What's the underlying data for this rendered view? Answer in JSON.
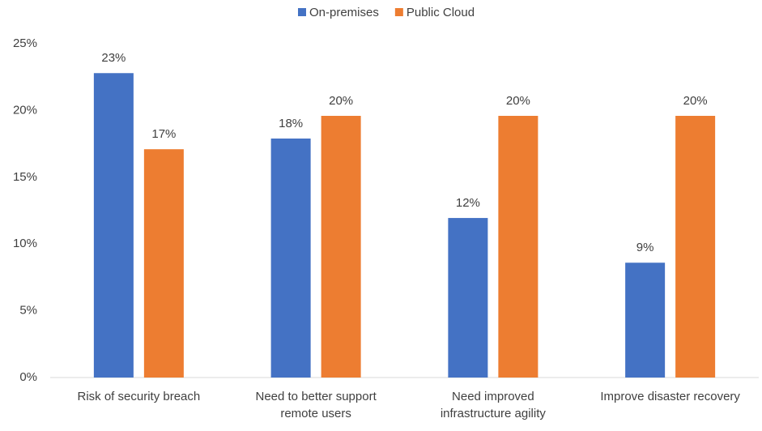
{
  "chart_data": {
    "type": "bar",
    "categories": [
      "Risk of security breach",
      "Need to better support remote users",
      "Need improved infrastructure agility",
      "Improve disaster recovery"
    ],
    "series": [
      {
        "name": "On-premises",
        "color": "#4472c4",
        "values": [
          22.8,
          17.9,
          11.95,
          8.6
        ],
        "value_labels": [
          "23%",
          "18%",
          "12%",
          "9%"
        ]
      },
      {
        "name": "Public Cloud",
        "color": "#ed7d31",
        "values": [
          17.1,
          19.6,
          19.6,
          19.6
        ],
        "value_labels": [
          "17%",
          "20%",
          "20%",
          "20%"
        ]
      }
    ],
    "ylim": [
      0,
      25
    ],
    "yticks": [
      {
        "value": 0,
        "label": "0%"
      },
      {
        "value": 5,
        "label": "5%"
      },
      {
        "value": 10,
        "label": "10%"
      },
      {
        "value": 15,
        "label": "15%"
      },
      {
        "value": 20,
        "label": "20%"
      },
      {
        "value": 25,
        "label": "25%"
      }
    ],
    "grid": false,
    "legend": "top"
  }
}
